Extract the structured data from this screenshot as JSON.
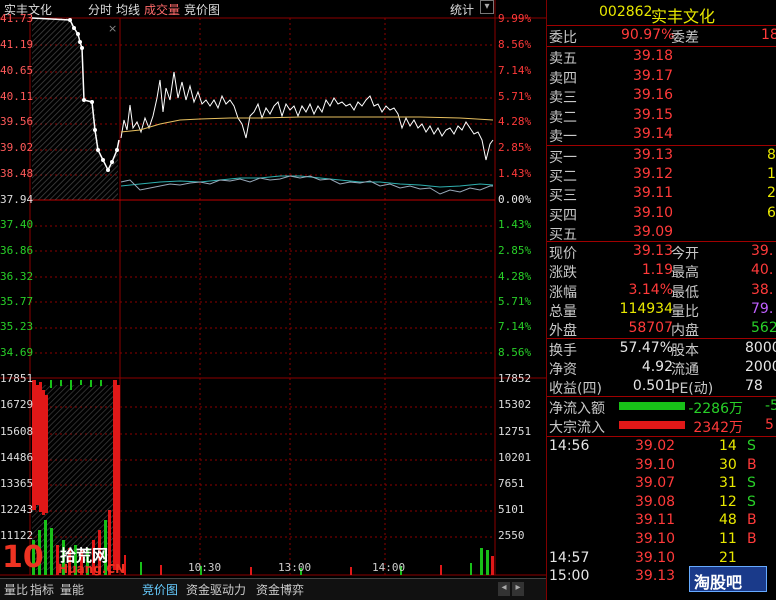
{
  "chart": {
    "stock_name": "实丰文化",
    "tabs": [
      "分时",
      "均线",
      "成交量",
      "竞价图"
    ],
    "stats_label": "统计",
    "price_labels": [
      "41.73",
      "41.19",
      "40.65",
      "40.11",
      "39.56",
      "39.02",
      "38.48",
      "37.94",
      "37.40",
      "36.86",
      "36.32",
      "35.77",
      "35.23",
      "34.69"
    ],
    "pct_labels": [
      "9.99%",
      "8.56%",
      "7.14%",
      "5.71%",
      "4.28%",
      "2.85%",
      "1.43%",
      "0.00%",
      "1.43%",
      "2.85%",
      "4.28%",
      "5.71%",
      "7.14%",
      "8.56%"
    ],
    "vol_labels_left": [
      "17851",
      "16729",
      "15608",
      "14486",
      "13365",
      "12243",
      "11122"
    ],
    "vol_labels_right": [
      "17852",
      "15302",
      "12751",
      "10201",
      "7651",
      "5101",
      "2550"
    ],
    "time_labels": [
      "10:30",
      "13:00",
      "14:00"
    ],
    "close_x": "×",
    "watermark_left": "10",
    "watermark_site": "拾荒网",
    "watermark_url": "Huang.CN",
    "watermark_right": "淘股吧",
    "bottom_tabs": [
      "量比",
      "指标",
      "量能",
      "竞价图",
      "资金驱动力",
      "资金博弈"
    ]
  },
  "quote": {
    "code": "002862",
    "name": "实丰文化",
    "weibi_label": "委比",
    "weibi_value": "90.97%",
    "weicha_label": "委差",
    "weicha_value": "18",
    "sells": [
      {
        "label": "卖五",
        "price": "39.18"
      },
      {
        "label": "卖四",
        "price": "39.17"
      },
      {
        "label": "卖三",
        "price": "39.16"
      },
      {
        "label": "卖二",
        "price": "39.15"
      },
      {
        "label": "卖一",
        "price": "39.14"
      }
    ],
    "buys": [
      {
        "label": "买一",
        "price": "39.13",
        "vol": "8"
      },
      {
        "label": "买二",
        "price": "39.12",
        "vol": "1"
      },
      {
        "label": "买三",
        "price": "39.11",
        "vol": "2"
      },
      {
        "label": "买四",
        "price": "39.10",
        "vol": "6"
      },
      {
        "label": "买五",
        "price": "39.09",
        "vol": ""
      }
    ],
    "stats": [
      {
        "l1": "现价",
        "v1": "39.13",
        "l2": "今开",
        "v2": "39."
      },
      {
        "l1": "涨跌",
        "v1": "1.19",
        "l2": "最高",
        "v2": "40."
      },
      {
        "l1": "涨幅",
        "v1": "3.14%",
        "l2": "最低",
        "v2": "38."
      },
      {
        "l1": "总量",
        "v1": "114934",
        "l2": "量比",
        "v2": "79."
      },
      {
        "l1": "外盘",
        "v1": "58707",
        "l2": "内盘",
        "v2": "562"
      }
    ],
    "stats2": [
      {
        "l1": "换手",
        "v1": "57.47%",
        "l2": "股本",
        "v2": "8000"
      },
      {
        "l1": "净资",
        "v1": "4.92",
        "l2": "流通",
        "v2": "2000"
      },
      {
        "l1": "收益(四)",
        "v1": "0.501",
        "l2": "PE(动)",
        "v2": "78"
      }
    ],
    "flows": [
      {
        "label": "净流入额",
        "value": "-2286万",
        "extra": "-5"
      },
      {
        "label": "大宗流入",
        "value": "2342万",
        "extra": "5"
      }
    ],
    "ticks": [
      {
        "time": "14:56",
        "price": "39.02",
        "vol": "14",
        "side": "S"
      },
      {
        "time": "",
        "price": "39.10",
        "vol": "30",
        "side": "B"
      },
      {
        "time": "",
        "price": "39.07",
        "vol": "31",
        "side": "S"
      },
      {
        "time": "",
        "price": "39.08",
        "vol": "12",
        "side": "S"
      },
      {
        "time": "",
        "price": "39.11",
        "vol": "48",
        "side": "B"
      },
      {
        "time": "",
        "price": "39.10",
        "vol": "11",
        "side": "B"
      },
      {
        "time": "14:57",
        "price": "39.10",
        "vol": "21",
        "side": ""
      },
      {
        "time": "15:00",
        "price": "39.13",
        "vol": "",
        "side": ""
      }
    ]
  }
}
